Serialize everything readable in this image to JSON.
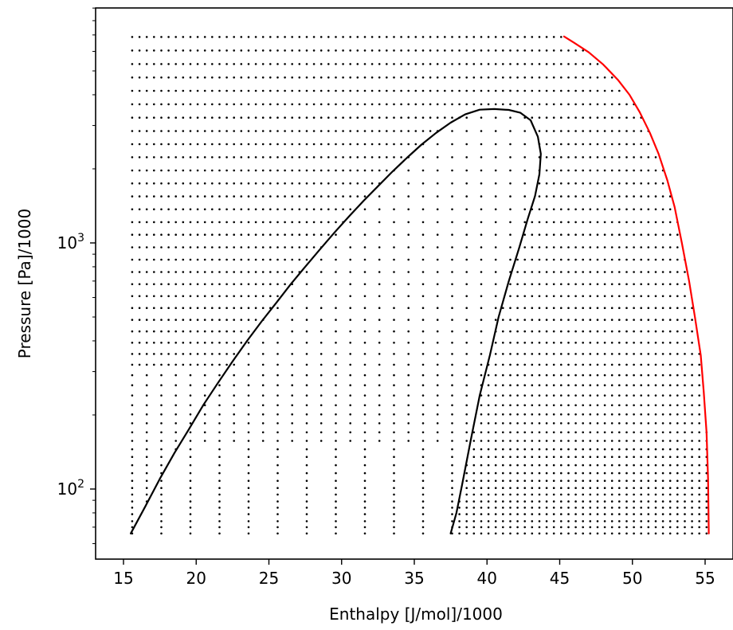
{
  "chart_data": {
    "type": "scatter",
    "title": "",
    "xlabel": "Enthalpy [J/mol]/1000",
    "ylabel": "Pressure [Pa]/1000",
    "xlim": [
      13.8,
      56.0
    ],
    "ylim": [
      52,
      7800
    ],
    "y_scale": "log",
    "grid": false,
    "x_ticks": [
      15,
      20,
      25,
      30,
      35,
      40,
      45,
      50,
      55
    ],
    "y_ticks": [
      {
        "value": 100,
        "base": "10",
        "exponent": "2"
      },
      {
        "value": 1000,
        "base": "10",
        "exponent": "3"
      }
    ],
    "series": [
      {
        "role": "phase-envelope",
        "color": "#000000",
        "points": [
          [
            15.5,
            66
          ],
          [
            16.5,
            85
          ],
          [
            17.5,
            110
          ],
          [
            18.5,
            140
          ],
          [
            19.5,
            175
          ],
          [
            20.5,
            220
          ],
          [
            21.5,
            270
          ],
          [
            22.5,
            330
          ],
          [
            23.5,
            400
          ],
          [
            24.5,
            480
          ],
          [
            25.5,
            570
          ],
          [
            26.5,
            680
          ],
          [
            27.5,
            800
          ],
          [
            28.5,
            940
          ],
          [
            29.5,
            1100
          ],
          [
            30.5,
            1280
          ],
          [
            31.5,
            1480
          ],
          [
            32.5,
            1700
          ],
          [
            33.5,
            1950
          ],
          [
            34.5,
            2220
          ],
          [
            35.5,
            2510
          ],
          [
            36.5,
            2800
          ],
          [
            37.5,
            3080
          ],
          [
            38.5,
            3330
          ],
          [
            39.5,
            3480
          ],
          [
            40.5,
            3500
          ],
          [
            41.5,
            3470
          ],
          [
            42.3,
            3380
          ],
          [
            43.0,
            3150
          ],
          [
            43.5,
            2700
          ],
          [
            43.7,
            2300
          ],
          [
            43.6,
            1900
          ],
          [
            43.3,
            1550
          ],
          [
            42.8,
            1250
          ],
          [
            42.2,
            950
          ],
          [
            41.5,
            700
          ],
          [
            40.8,
            500
          ],
          [
            40.2,
            350
          ],
          [
            39.5,
            240
          ],
          [
            38.9,
            160
          ],
          [
            38.3,
            105
          ],
          [
            37.9,
            80
          ],
          [
            37.5,
            66
          ]
        ]
      },
      {
        "role": "isotherm",
        "color": "#ff0000",
        "points": [
          [
            45.3,
            6900
          ],
          [
            46.0,
            6500
          ],
          [
            47.0,
            5950
          ],
          [
            48.0,
            5300
          ],
          [
            49.0,
            4600
          ],
          [
            49.8,
            4000
          ],
          [
            50.5,
            3400
          ],
          [
            51.2,
            2800
          ],
          [
            51.8,
            2300
          ],
          [
            52.4,
            1800
          ],
          [
            52.9,
            1400
          ],
          [
            53.4,
            1000
          ],
          [
            53.9,
            700
          ],
          [
            54.3,
            500
          ],
          [
            54.7,
            350
          ],
          [
            54.9,
            250
          ],
          [
            55.1,
            170
          ],
          [
            55.2,
            110
          ],
          [
            55.25,
            66
          ]
        ]
      }
    ],
    "dot_grid": {
      "description": "regular grid of sample points: one row per pressure level, columns at constant enthalpy spacing; rows at low pressure extend from ~15.5 to 55.2",
      "pressure_levels": [
        66,
        70,
        74,
        79,
        84,
        89,
        95,
        101,
        108,
        116,
        125,
        135,
        145,
        157,
        170,
        185,
        201,
        219,
        240,
        264,
        290,
        320,
        354,
        393,
        437,
        487,
        544,
        608,
        680,
        762,
        855,
        960,
        1080,
        1215,
        1370,
        1545,
        1745,
        1970,
        2230,
        2520,
        2850,
        3230,
        3660,
        4150,
        4700,
        5330,
        6050,
        6870
      ],
      "h_min": 15.6,
      "h_step": 0.5,
      "h_max_low_p": 55.2,
      "color": "#000000"
    }
  }
}
